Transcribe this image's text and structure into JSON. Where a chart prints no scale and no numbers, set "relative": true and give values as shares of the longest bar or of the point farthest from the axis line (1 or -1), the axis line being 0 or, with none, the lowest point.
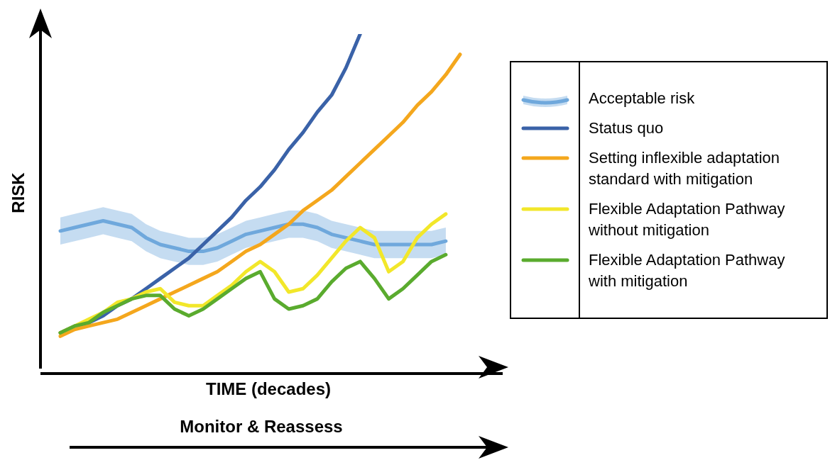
{
  "chart_data": {
    "type": "line",
    "relative": true,
    "xlabel": "TIME (decades)",
    "ylabel": "RISK",
    "legend": "right",
    "grid": false,
    "annotations": [
      "Monitor & Reassess"
    ],
    "categories": [
      null,
      null,
      null,
      null,
      null,
      null,
      null,
      null,
      null,
      null,
      null,
      null,
      null,
      null,
      null,
      null,
      null,
      null,
      null,
      null,
      null,
      null,
      null,
      null,
      null,
      null,
      null,
      null,
      null
    ],
    "series": [
      {
        "name": "Acceptable risk",
        "color": "#6fa8dc",
        "values": [
          0.42,
          0.43,
          0.44,
          0.45,
          0.44,
          0.43,
          0.4,
          0.38,
          0.37,
          0.36,
          0.36,
          0.37,
          0.39,
          0.41,
          0.42,
          0.43,
          0.44,
          0.44,
          0.43,
          0.41,
          0.4,
          0.39,
          0.38,
          0.38,
          0.38,
          0.38,
          0.38,
          0.39,
          null
        ],
        "lower": [
          0.38,
          0.39,
          0.4,
          0.41,
          0.4,
          0.39,
          0.36,
          0.34,
          0.33,
          0.32,
          0.32,
          0.33,
          0.35,
          0.37,
          0.38,
          0.39,
          0.4,
          0.4,
          0.39,
          0.37,
          0.36,
          0.35,
          0.34,
          0.34,
          0.34,
          0.34,
          0.34,
          0.35,
          null
        ],
        "upper": [
          0.46,
          0.47,
          0.48,
          0.49,
          0.48,
          0.47,
          0.44,
          0.42,
          0.41,
          0.4,
          0.4,
          0.41,
          0.43,
          0.45,
          0.46,
          0.47,
          0.48,
          0.48,
          0.47,
          0.45,
          0.44,
          0.43,
          0.42,
          0.42,
          0.42,
          0.42,
          0.42,
          0.43,
          null
        ]
      },
      {
        "name": "Status quo",
        "color": "#3a62a8",
        "values": [
          0.12,
          0.14,
          0.15,
          0.17,
          0.2,
          0.22,
          0.25,
          0.28,
          0.31,
          0.34,
          0.38,
          0.42,
          0.46,
          0.51,
          0.55,
          0.6,
          0.66,
          0.71,
          0.77,
          0.82,
          0.9,
          1.0,
          null,
          null,
          null,
          null,
          null,
          null,
          null
        ]
      },
      {
        "name": "Setting inflexible adaptation standard with mitigation",
        "color": "#f4a71d",
        "values": [
          0.11,
          0.13,
          0.14,
          0.15,
          0.16,
          0.18,
          0.2,
          0.22,
          0.24,
          0.26,
          0.28,
          0.3,
          0.33,
          0.36,
          0.38,
          0.41,
          0.44,
          0.48,
          0.51,
          0.54,
          0.58,
          0.62,
          0.66,
          0.7,
          0.74,
          0.79,
          0.83,
          0.88,
          0.94
        ]
      },
      {
        "name": "Flexible Adaptation Pathway without mitigation",
        "color": "#f2e72a",
        "values": [
          0.12,
          0.14,
          0.16,
          0.18,
          0.21,
          0.22,
          0.24,
          0.25,
          0.21,
          0.2,
          0.2,
          0.23,
          0.26,
          0.3,
          0.33,
          0.3,
          0.24,
          0.25,
          0.29,
          0.34,
          0.39,
          0.43,
          0.4,
          0.3,
          0.33,
          0.4,
          0.44,
          0.47,
          null
        ]
      },
      {
        "name": "Flexible Adaptation Pathway with mitigation",
        "color": "#5aab2e",
        "values": [
          0.12,
          0.14,
          0.15,
          0.18,
          0.2,
          0.22,
          0.23,
          0.23,
          0.19,
          0.17,
          0.19,
          0.22,
          0.25,
          0.28,
          0.3,
          0.22,
          0.19,
          0.2,
          0.22,
          0.27,
          0.31,
          0.33,
          0.28,
          0.22,
          0.25,
          0.29,
          0.33,
          0.35,
          null
        ]
      }
    ]
  }
}
